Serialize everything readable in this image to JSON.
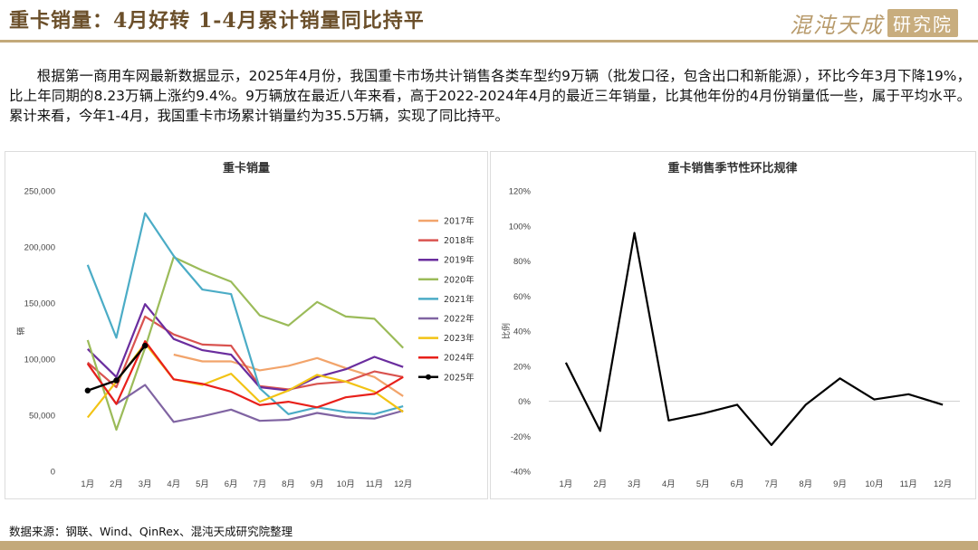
{
  "header": {
    "title": "重卡销量：4月好转 1-4月累计销量同比持平",
    "logo_text": "混沌天成",
    "logo_seal": "研究院"
  },
  "colors": {
    "accent": "#c3a97a",
    "title": "#6b4f2a"
  },
  "body": {
    "paragraph": "根据第一商用车网最新数据显示，2025年4月份，我国重卡市场共计销售各类车型约9万辆（批发口径，包含出口和新能源），环比今年3月下降19%，比上年同期的8.23万辆上涨约9.4%。9万辆放在最近八年来看，高于2022-2024年4月的最近三年销量，比其他年份的4月份销量低一些，属于平均水平。累计来看，今年1-4月，我国重卡市场累计销量约为35.5万辆，实现了同比持平。"
  },
  "footer": {
    "source": "数据来源：钢联、Wind、QinRex、混沌天成研究院整理"
  },
  "chart_data": [
    {
      "type": "line",
      "title": "重卡销量",
      "xlabel": "",
      "ylabel": "辆",
      "ylim": [
        0,
        250000
      ],
      "yticks": [
        0,
        50000,
        100000,
        150000,
        200000,
        250000
      ],
      "ytick_labels": [
        "0",
        "50,000",
        "100,000",
        "150,000",
        "200,000",
        "250,000"
      ],
      "categories": [
        "1月",
        "2月",
        "3月",
        "4月",
        "5月",
        "6月",
        "7月",
        "8月",
        "9月",
        "10月",
        "11月",
        "12月"
      ],
      "legend_position": "right",
      "grid": false,
      "series": [
        {
          "name": "2017年",
          "color": "#f2a46b",
          "markers": false,
          "values": [
            null,
            null,
            null,
            104000,
            98000,
            98000,
            90000,
            94000,
            101000,
            92000,
            84000,
            67000
          ]
        },
        {
          "name": "2018年",
          "color": "#d9534f",
          "markers": false,
          "values": [
            97000,
            75000,
            138000,
            122000,
            113000,
            112000,
            76000,
            73000,
            78000,
            80000,
            89000,
            84000
          ]
        },
        {
          "name": "2019年",
          "color": "#6a2d9e",
          "markers": false,
          "values": [
            109000,
            84000,
            149000,
            118000,
            108000,
            104000,
            75000,
            72000,
            84000,
            91000,
            102000,
            93000
          ]
        },
        {
          "name": "2020年",
          "color": "#9bbb59",
          "markers": false,
          "values": [
            117000,
            37000,
            110000,
            191000,
            179000,
            169000,
            139000,
            130000,
            151000,
            138000,
            136000,
            110000
          ]
        },
        {
          "name": "2021年",
          "color": "#4bacc6",
          "markers": false,
          "values": [
            184000,
            119000,
            230000,
            192000,
            162000,
            158000,
            74000,
            51000,
            57000,
            53000,
            51000,
            58000
          ]
        },
        {
          "name": "2022年",
          "color": "#8064a2",
          "markers": false,
          "values": [
            96000,
            60000,
            77000,
            44000,
            49000,
            55000,
            45000,
            46000,
            52000,
            48000,
            47000,
            54000
          ]
        },
        {
          "name": "2023年",
          "color": "#f2c314",
          "markers": false,
          "values": [
            48000,
            80000,
            114000,
            82000,
            77000,
            87000,
            62000,
            72000,
            86000,
            80000,
            71000,
            53000
          ]
        },
        {
          "name": "2024年",
          "color": "#e8201a",
          "markers": false,
          "values": [
            96000,
            60000,
            116000,
            82000,
            78000,
            71000,
            59000,
            62000,
            57000,
            66000,
            69000,
            84000
          ]
        },
        {
          "name": "2025年",
          "color": "#000000",
          "markers": true,
          "values": [
            72000,
            81000,
            112000,
            null,
            null,
            null,
            null,
            null,
            null,
            null,
            null,
            null
          ]
        }
      ]
    },
    {
      "type": "line",
      "title": "重卡销售季节性环比规律",
      "xlabel": "",
      "ylabel": "比例",
      "ylim": [
        -40,
        120
      ],
      "yticks": [
        -40,
        -20,
        0,
        20,
        40,
        60,
        80,
        100,
        120
      ],
      "ytick_labels": [
        "-40%",
        "-20%",
        "0%",
        "20%",
        "40%",
        "60%",
        "80%",
        "100%",
        "120%"
      ],
      "categories": [
        "1月",
        "2月",
        "3月",
        "4月",
        "5月",
        "6月",
        "7月",
        "8月",
        "9月",
        "10月",
        "11月",
        "12月"
      ],
      "grid": false,
      "series": [
        {
          "color": "#000000",
          "values": [
            22,
            -17,
            96,
            -11,
            -7,
            -2,
            -25,
            -2,
            13,
            1,
            4,
            -2
          ]
        }
      ]
    }
  ]
}
